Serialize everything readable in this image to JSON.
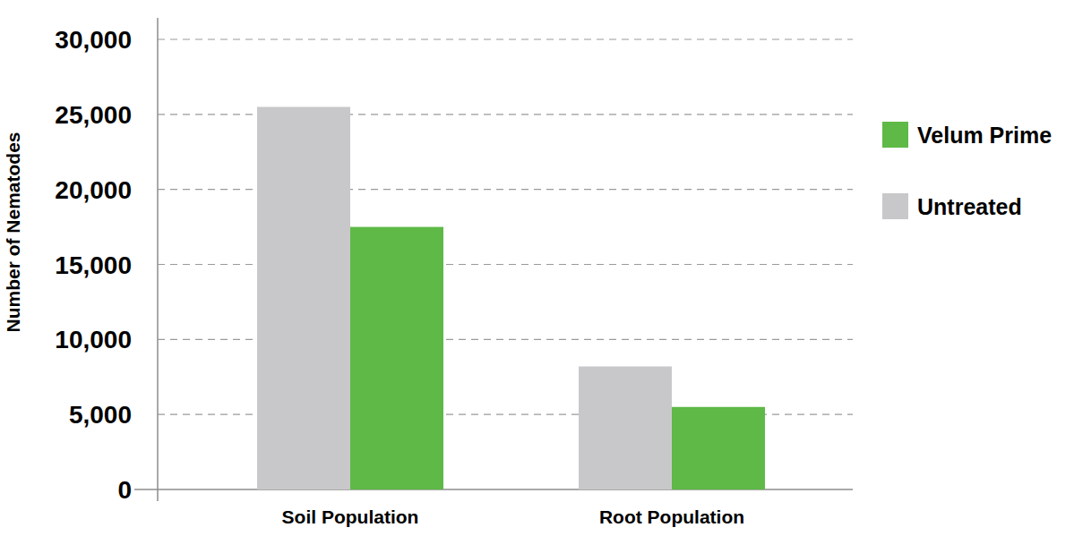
{
  "chart_data": {
    "type": "bar",
    "y_label": "Number of Nematodes",
    "categories": [
      "Soil Population",
      "Root Population"
    ],
    "series": [
      {
        "name": "Untreated",
        "color": "#c8c8ca",
        "values": [
          25500,
          8200
        ]
      },
      {
        "name": "Velum Prime",
        "color": "#5eb946",
        "values": [
          17500,
          5500
        ]
      }
    ],
    "ylim": [
      0,
      30000
    ],
    "yticks": [
      0,
      {
        "value": 5000,
        "label": "5,000"
      },
      {
        "value": 10000,
        "label": "10,000"
      },
      {
        "value": 15000,
        "label": "15,000"
      },
      {
        "value": 20000,
        "label": "20,000"
      },
      {
        "value": 25000,
        "label": "25,000"
      },
      {
        "value": 30000,
        "label": "30,000"
      }
    ],
    "grid": true,
    "legend": "right"
  }
}
